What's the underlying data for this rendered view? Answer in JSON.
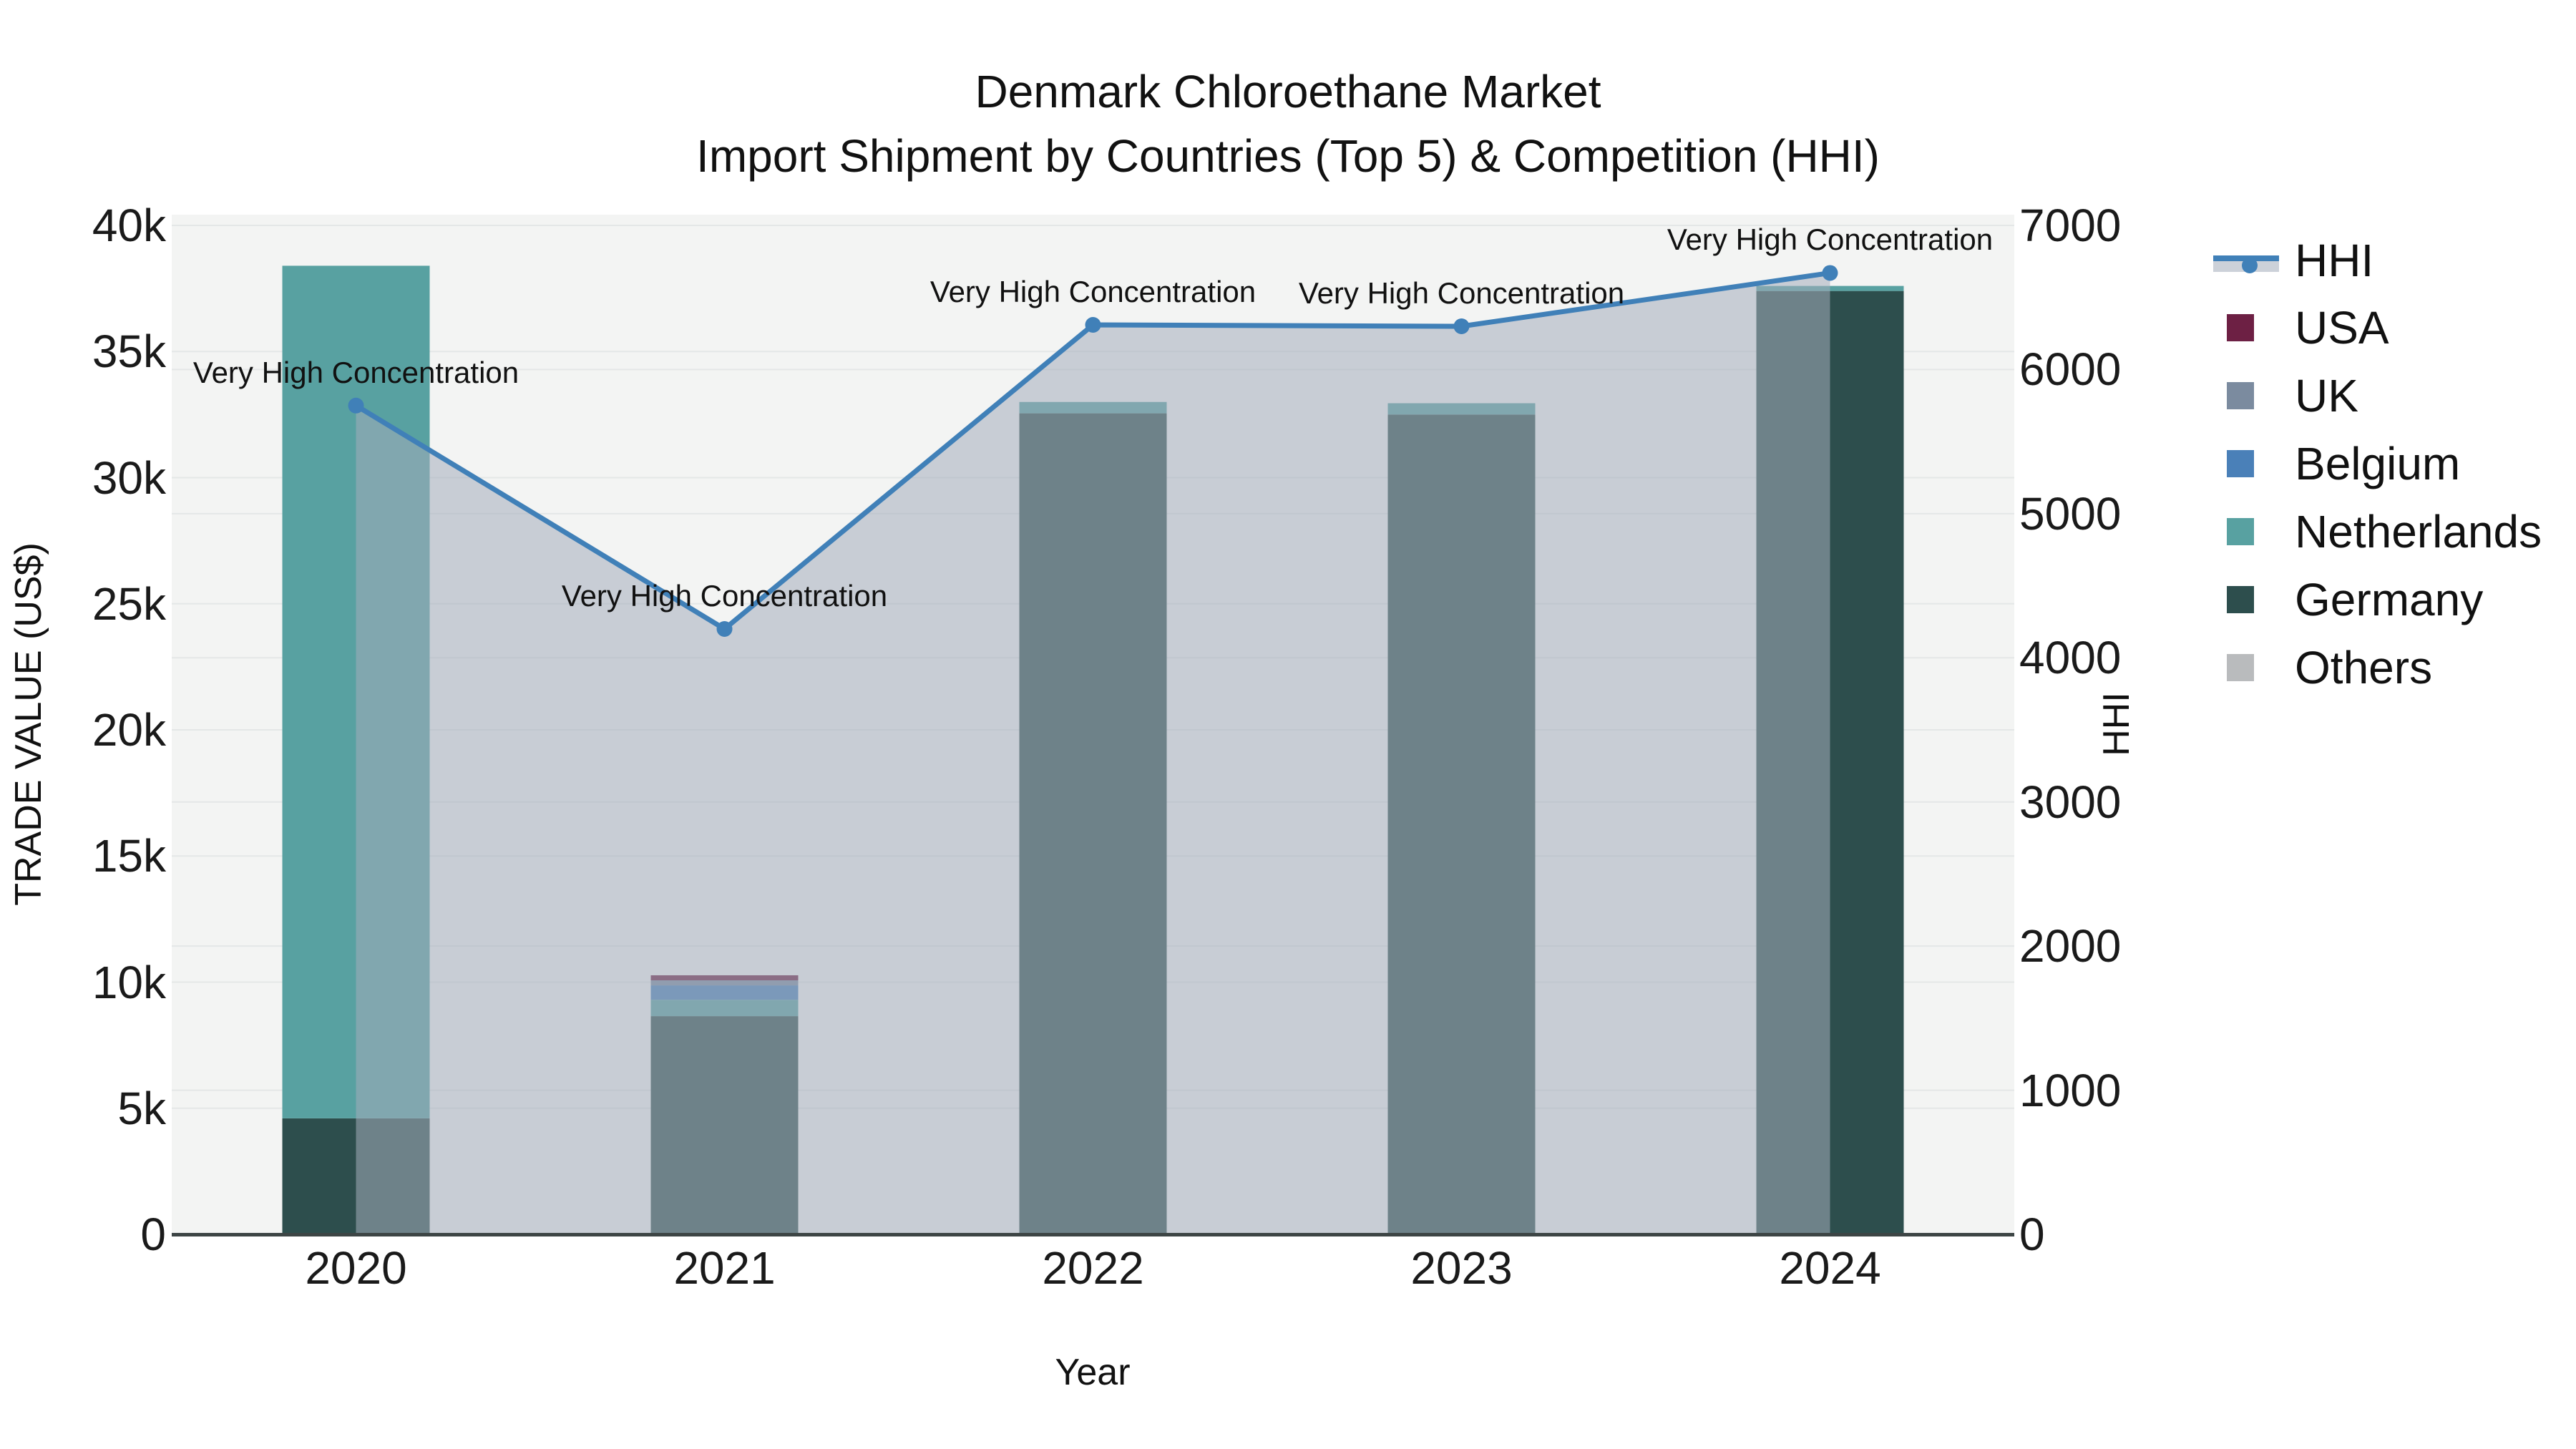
{
  "chart_data": {
    "type": "bar+line",
    "title_line1": "Denmark Chloroethane Market",
    "title_line2": "Import Shipment by Countries (Top 5) & Competition (HHI)",
    "xlabel": "Year",
    "ylabel_left": "TRADE VALUE (US$)",
    "ylabel_right": "HHI",
    "categories": [
      "2020",
      "2021",
      "2022",
      "2023",
      "2024"
    ],
    "bar_series": [
      {
        "name": "Germany",
        "color": "#2d4e4d",
        "values": [
          4600,
          8650,
          32550,
          32500,
          37400
        ]
      },
      {
        "name": "Netherlands",
        "color": "#58a1a1",
        "values": [
          33800,
          650,
          450,
          450,
          200
        ]
      },
      {
        "name": "Belgium",
        "color": "#4a80b8",
        "values": [
          0,
          570,
          0,
          0,
          0
        ]
      },
      {
        "name": "UK",
        "color": "#7b8b9f",
        "values": [
          0,
          200,
          0,
          0,
          0
        ]
      },
      {
        "name": "USA",
        "color": "#6d2044",
        "values": [
          0,
          200,
          0,
          0,
          0
        ]
      },
      {
        "name": "Others",
        "color": "#b9bbbd",
        "values": [
          0,
          0,
          0,
          0,
          0
        ]
      }
    ],
    "bar_totals": [
      38400,
      10270,
      33000,
      32950,
      37600
    ],
    "line_series": {
      "name": "HHI",
      "color": "#4080b8",
      "fill_color": "#a4adbc",
      "fill_opacity": 0.55,
      "axis": "right",
      "values": [
        5750,
        4200,
        6310,
        6300,
        6670
      ]
    },
    "annotations": [
      {
        "x": "2020",
        "text": "Very High Concentration"
      },
      {
        "x": "2021",
        "text": "Very High Concentration"
      },
      {
        "x": "2022",
        "text": "Very High Concentration"
      },
      {
        "x": "2023",
        "text": "Very High Concentration"
      },
      {
        "x": "2024",
        "text": "Very High Concentration"
      }
    ],
    "left_axis": {
      "range": [
        0,
        40000
      ],
      "tick_values": [
        0,
        5000,
        10000,
        15000,
        20000,
        25000,
        30000,
        35000,
        40000
      ],
      "tick_labels": [
        "0",
        "5k",
        "10k",
        "15k",
        "20k",
        "25k",
        "30k",
        "35k",
        "40k"
      ],
      "grid": true
    },
    "right_axis": {
      "range": [
        0,
        7000
      ],
      "tick_values": [
        0,
        1000,
        2000,
        3000,
        4000,
        5000,
        6000,
        7000
      ],
      "tick_labels": [
        "0",
        "1000",
        "2000",
        "3000",
        "4000",
        "5000",
        "6000",
        "7000"
      ],
      "grid": true
    },
    "legend_order": [
      "HHI",
      "USA",
      "UK",
      "Belgium",
      "Netherlands",
      "Germany",
      "Others"
    ],
    "legend_position": "right",
    "colors": {
      "plot_bg": "#f3f4f3",
      "grid": "#e4e7e7",
      "zeroline": "#3d4545",
      "text": "#111111"
    }
  }
}
